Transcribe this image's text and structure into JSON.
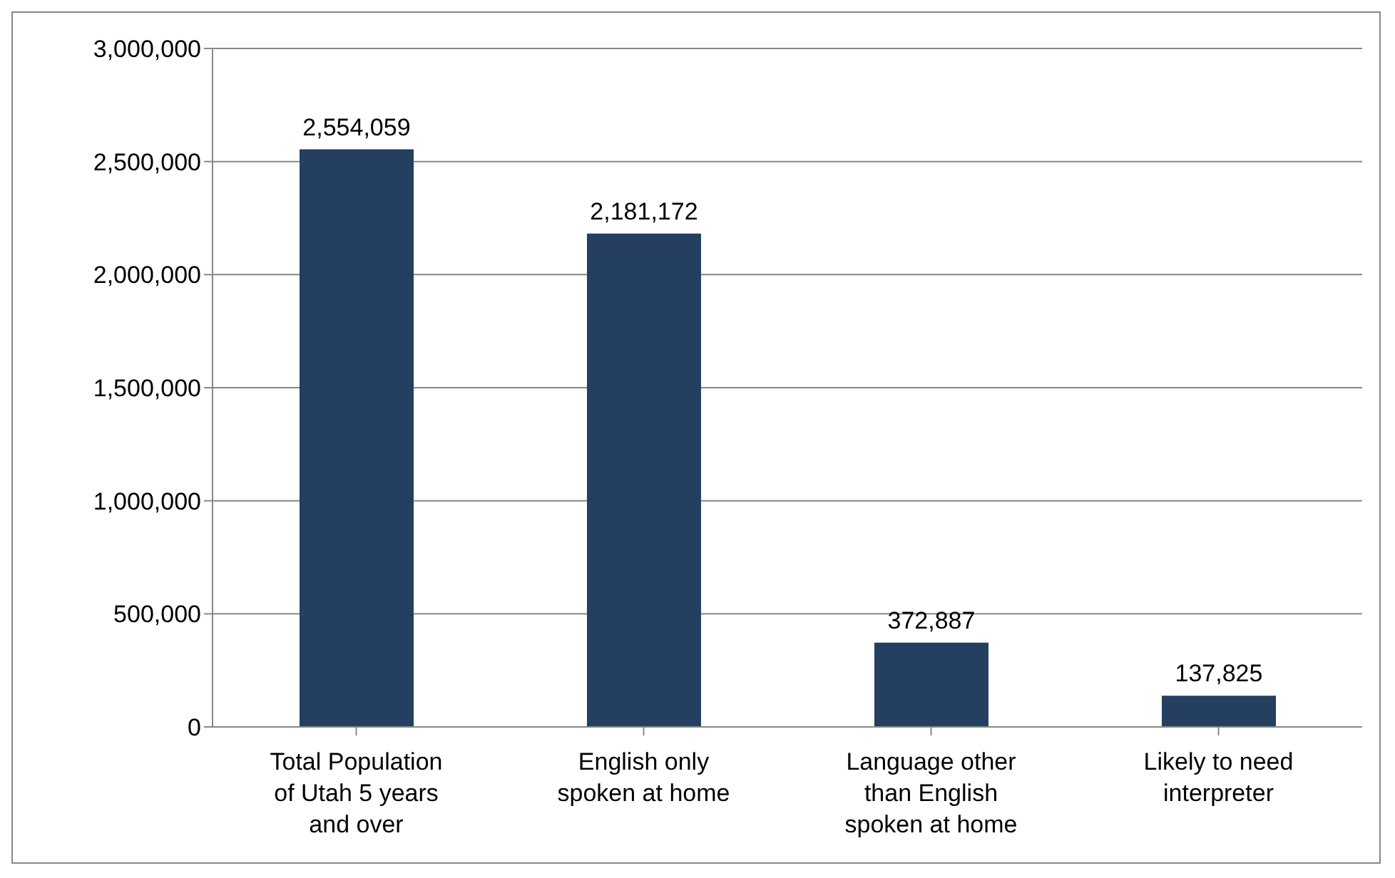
{
  "chart_data": {
    "type": "bar",
    "categories": [
      "Total Population of Utah 5 years and over",
      "English only spoken at home",
      "Language other than English spoken at home",
      "Likely to need interpreter"
    ],
    "values": [
      2554059,
      2181172,
      372887,
      137825
    ],
    "color": "#243f60",
    "ylim": [
      0,
      3000000
    ],
    "yticks": [
      {
        "value": 0,
        "label": "0"
      },
      {
        "value": 500000,
        "label": "500,000"
      },
      {
        "value": 1000000,
        "label": "1,000,000"
      },
      {
        "value": 1500000,
        "label": "1,500,000"
      },
      {
        "value": 2000000,
        "label": "2,000,000"
      },
      {
        "value": 2500000,
        "label": "2,500,000"
      },
      {
        "value": 3000000,
        "label": "3,000,000"
      }
    ],
    "grid": "y",
    "value_labels": [
      "2,554,059",
      "2,181,172",
      "372,887",
      "137,825"
    ]
  }
}
